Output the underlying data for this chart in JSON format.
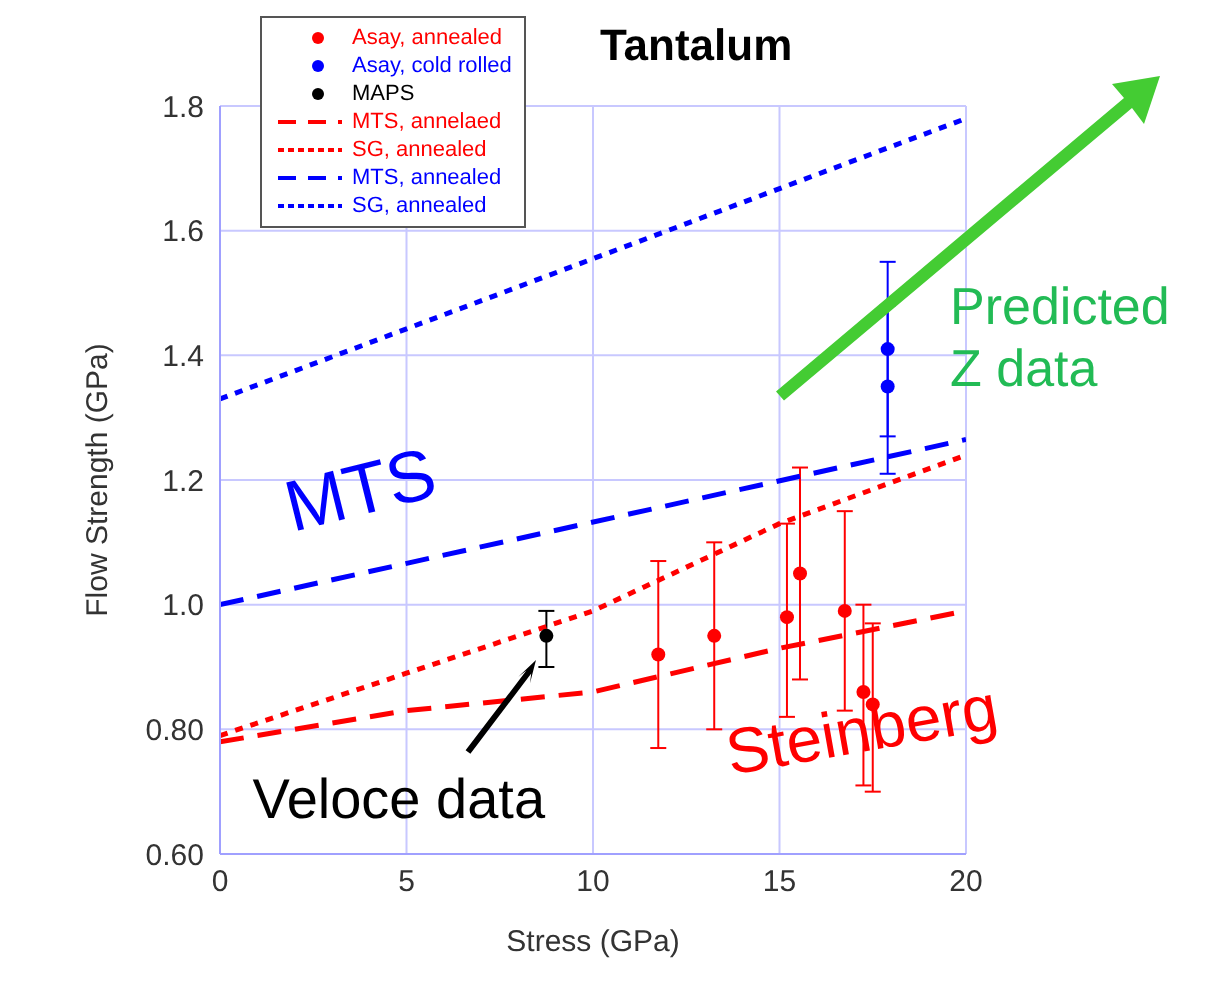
{
  "chart_data": {
    "type": "scatter",
    "title": "Tantalum",
    "xlabel": "Stress (GPa)",
    "ylabel": "Flow Strength (GPa)",
    "xlim": [
      0,
      20
    ],
    "xticks": [
      0,
      5,
      10,
      15,
      20
    ],
    "ylim": [
      0.6,
      1.8
    ],
    "yticks": [
      {
        "value": 0.6,
        "label": "0.60"
      },
      {
        "value": 0.8,
        "label": "0.80"
      },
      {
        "value": 1.0,
        "label": "1.0"
      },
      1.2,
      1.4,
      1.6,
      1.8
    ],
    "grid": true,
    "legend": "top left",
    "series": [
      {
        "name": "Asay, annealed",
        "marker": "circle",
        "color": "#ff0000",
        "x": [
          11.75,
          13.25,
          15.2,
          15.55,
          16.75,
          17.25,
          17.5
        ],
        "values": [
          0.92,
          0.95,
          0.98,
          1.05,
          0.99,
          0.86,
          0.84
        ],
        "errors": [
          [
            0.77,
            1.07
          ],
          [
            0.8,
            1.1
          ],
          [
            0.82,
            1.13
          ],
          [
            0.88,
            1.22
          ],
          [
            0.83,
            1.15
          ],
          [
            0.71,
            1.0
          ],
          [
            0.7,
            0.97
          ]
        ]
      },
      {
        "name": "Asay, cold rolled",
        "marker": "circle",
        "color": "#0000ff",
        "x": [
          17.9,
          17.9
        ],
        "values": [
          1.41,
          1.35
        ],
        "errors": [
          [
            1.27,
            1.55
          ],
          [
            1.21,
            1.48
          ]
        ]
      },
      {
        "name": "MAPS",
        "marker": "circle",
        "color": "#000000",
        "x": [
          8.75
        ],
        "values": [
          0.95
        ],
        "errors": [
          [
            0.9,
            0.99
          ]
        ]
      },
      {
        "name": "MTS, annelaed",
        "type": "line",
        "line_style": "dashed",
        "color": "#ff0000",
        "x": [
          0,
          5,
          10,
          15,
          20
        ],
        "values": [
          0.78,
          0.83,
          0.86,
          0.93,
          0.99
        ]
      },
      {
        "name": "SG, annealed",
        "type": "line",
        "line_style": "dotted",
        "color": "#ff0000",
        "x": [
          0,
          5,
          10,
          15,
          20
        ],
        "values": [
          0.79,
          0.89,
          0.99,
          1.13,
          1.24
        ]
      },
      {
        "name": "MTS, annealed",
        "type": "line",
        "line_style": "dashed",
        "color": "#0000ff",
        "x": [
          0,
          20
        ],
        "values": [
          1.0,
          1.265
        ]
      },
      {
        "name": "SG, annealed",
        "type": "line",
        "line_style": "dotted",
        "color": "#0000ff",
        "x": [
          0,
          20
        ],
        "values": [
          1.33,
          1.78
        ]
      }
    ],
    "annotations": [
      "MTS",
      "Steinberg",
      {
        "text": "Veloce data",
        "x": 8.75,
        "y": 0.95
      },
      "Predicted\nZ data"
    ]
  }
}
